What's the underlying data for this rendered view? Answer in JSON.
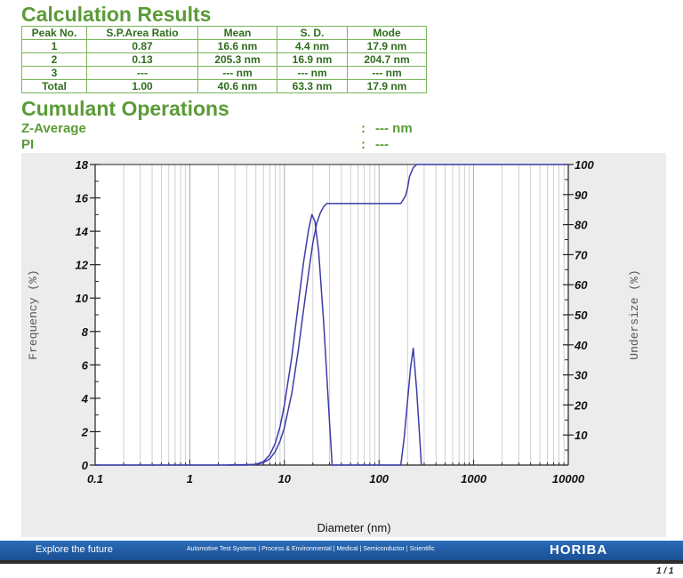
{
  "calculation_results": {
    "title": "Calculation Results",
    "headers": [
      "Peak No.",
      "S.P.Area Ratio",
      "Mean",
      "S. D.",
      "Mode"
    ],
    "rows": [
      [
        "1",
        "0.87",
        "16.6 nm",
        "4.4 nm",
        "17.9 nm"
      ],
      [
        "2",
        "0.13",
        "205.3 nm",
        "16.9 nm",
        "204.7 nm"
      ],
      [
        "3",
        "---",
        "--- nm",
        "--- nm",
        "--- nm"
      ],
      [
        "Total",
        "1.00",
        "40.6 nm",
        "63.3 nm",
        "17.9 nm"
      ]
    ]
  },
  "cumulant_operations": {
    "title": "Cumulant Operations",
    "z_average": {
      "label": "Z-Average",
      "separator": ":",
      "value": "--- nm"
    },
    "pi": {
      "label": "PI",
      "separator": ":",
      "value": "---"
    }
  },
  "footer": {
    "tagline": "Explore the future",
    "divisions": "Automotive Test Systems  |  Process & Environmental  |  Medical  |  Semiconductor  |  Scientific",
    "brand": "HORIBA",
    "page": "1 / 1"
  },
  "colors": {
    "heading": "#5a9b37",
    "table_text": "#2f6d1e",
    "curve": "#3c3ca8",
    "footer_bar": "#2b6cb8",
    "panel": "#ececec"
  },
  "chart_data": {
    "type": "line",
    "xlabel": "Diameter (nm)",
    "ylabel": "Frequency (%)",
    "y2label": "Undersize (%)",
    "x_scale": "log",
    "xlim": [
      0.1,
      10000
    ],
    "ylim": [
      0,
      18
    ],
    "y2lim": [
      0,
      100
    ],
    "x_ticks": [
      "0.1",
      "1",
      "10",
      "100",
      "1000",
      "10000"
    ],
    "y_ticks": [
      "0",
      "2",
      "4",
      "6",
      "8",
      "10",
      "12",
      "14",
      "16",
      "18"
    ],
    "y2_ticks": [
      "10",
      "20",
      "30",
      "40",
      "50",
      "60",
      "70",
      "80",
      "90",
      "100"
    ],
    "grid": true,
    "series": [
      {
        "axis": "left",
        "x": [
          0.1,
          0.2,
          2.5,
          4.0,
          5.0,
          6.0,
          7.0,
          8.0,
          9.0,
          10.0,
          12.0,
          14.0,
          16.0,
          18.0,
          19.5,
          21.0,
          23.0,
          26.0,
          30.0,
          32.0,
          170,
          185,
          200,
          215,
          230,
          250,
          270,
          280
        ],
        "y": [
          0,
          0,
          0,
          0,
          0.05,
          0.2,
          0.6,
          1.3,
          2.3,
          3.6,
          6.5,
          9.6,
          12.2,
          14.1,
          15.0,
          14.6,
          12.8,
          8.5,
          2.5,
          0,
          0,
          1.7,
          3.8,
          5.8,
          7.0,
          4.5,
          1.5,
          0
        ]
      },
      {
        "axis": "right",
        "x": [
          2.5,
          5.0,
          6.0,
          7.0,
          8.0,
          9.0,
          10.0,
          12.0,
          14.0,
          16.0,
          18.0,
          20.0,
          22.0,
          24.0,
          26.0,
          28.0,
          32.0,
          40.0,
          100.0,
          170,
          190,
          200,
          210,
          230,
          250,
          10000
        ],
        "y": [
          0,
          0.2,
          0.8,
          2.0,
          4.5,
          8.0,
          12.5,
          24.0,
          38.0,
          52.0,
          64.0,
          74.0,
          80.5,
          84.0,
          86.0,
          87.0,
          87.0,
          87.0,
          87.0,
          87.0,
          89.5,
          92.0,
          96.0,
          99.0,
          100.0,
          100.0
        ]
      }
    ]
  }
}
